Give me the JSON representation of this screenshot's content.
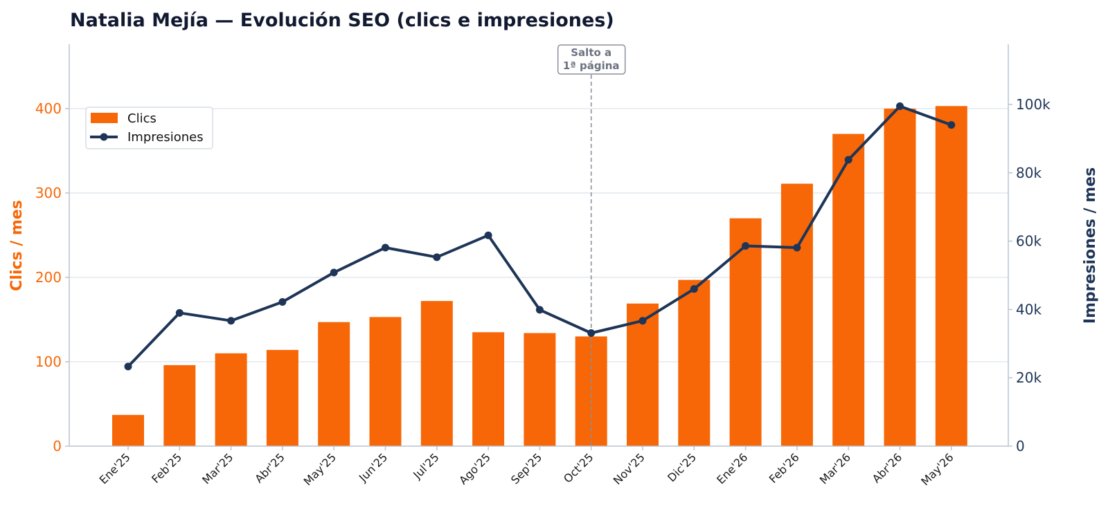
{
  "chart_data": {
    "type": "bar",
    "title": "Natalia Mejía — Evolución SEO (clics e impresiones)",
    "categories": [
      "Ene'25",
      "Feb'25",
      "Mar'25",
      "Abr'25",
      "May'25",
      "Jun'25",
      "Jul'25",
      "Ago'25",
      "Sep'25",
      "Oct'25",
      "Nov'25",
      "Dic'25",
      "Ene'26",
      "Feb'26",
      "Mar'26",
      "Abr'26",
      "May'26"
    ],
    "series": [
      {
        "name": "Clics",
        "type": "bar",
        "axis": "left",
        "color": "#f76707",
        "values": [
          37,
          96,
          110,
          114,
          147,
          153,
          172,
          135,
          134,
          130,
          169,
          197,
          270,
          311,
          370,
          400,
          403
        ]
      },
      {
        "name": "Impresiones",
        "type": "line",
        "axis": "right",
        "color": "#1e3557",
        "values": [
          23300,
          39000,
          36700,
          42200,
          50800,
          58100,
          55300,
          61700,
          39900,
          33100,
          36700,
          46000,
          58600,
          58100,
          83800,
          99500,
          94000
        ]
      }
    ],
    "ylabel": "Clics / mes",
    "ylabel_right": "Impresiones / mes",
    "ylim": [
      0,
      400
    ],
    "ylim_right": [
      0,
      100000
    ],
    "yticks": [
      0,
      100,
      200,
      300,
      400
    ],
    "yticks_right": [
      {
        "value": 0,
        "label": "0"
      },
      {
        "value": 20000,
        "label": "20k"
      },
      {
        "value": 40000,
        "label": "40k"
      },
      {
        "value": 60000,
        "label": "60k"
      },
      {
        "value": 80000,
        "label": "80k"
      },
      {
        "value": 100000,
        "label": "100k"
      }
    ],
    "grid": "horizontal",
    "legend": "top-left",
    "annotation": {
      "category": "Oct'25",
      "lines": [
        "Salto a",
        "1ª página"
      ]
    }
  }
}
